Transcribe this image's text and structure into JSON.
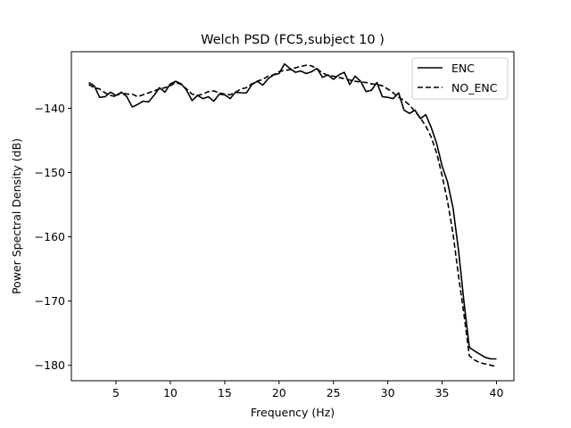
{
  "chart_data": {
    "type": "line",
    "title": "Welch PSD (FC5,subject 10 )",
    "xlabel": "Frequency (Hz)",
    "ylabel": "Power Spectral Density (dB)",
    "xlim": [
      0.9,
      41.6
    ],
    "ylim": [
      -182.4,
      -131.2
    ],
    "xticks": [
      5,
      10,
      15,
      20,
      25,
      30,
      35,
      40
    ],
    "yticks": [
      -180,
      -170,
      -160,
      -150,
      -140
    ],
    "grid": false,
    "legend_position": "top-right",
    "series": [
      {
        "name": "ENC",
        "style": "solid",
        "color": "#000000",
        "x": [
          2.5,
          3.0,
          3.5,
          4.0,
          4.5,
          5.0,
          5.5,
          6.0,
          6.5,
          7.0,
          7.5,
          8.0,
          8.5,
          9.0,
          9.5,
          10.0,
          10.5,
          11.0,
          11.5,
          12.0,
          12.5,
          13.0,
          13.5,
          14.0,
          14.5,
          15.0,
          15.5,
          16.0,
          16.5,
          17.0,
          17.5,
          18.0,
          18.5,
          19.0,
          19.5,
          20.0,
          20.5,
          21.0,
          21.5,
          22.0,
          22.5,
          23.0,
          23.5,
          24.0,
          24.5,
          25.0,
          25.5,
          26.0,
          26.5,
          27.0,
          27.5,
          28.0,
          28.5,
          29.0,
          29.5,
          30.0,
          30.5,
          31.0,
          31.5,
          32.0,
          32.5,
          33.0,
          33.5,
          34.0,
          34.5,
          35.0,
          35.5,
          36.0,
          36.5,
          37.0,
          37.5,
          38.0,
          38.5,
          39.0,
          39.5,
          40.0
        ],
        "values": [
          -136.0,
          -136.5,
          -138.3,
          -138.2,
          -137.5,
          -138.0,
          -137.5,
          -138.2,
          -139.8,
          -139.4,
          -138.9,
          -139.0,
          -138.0,
          -136.8,
          -137.5,
          -136.2,
          -135.8,
          -136.2,
          -137.2,
          -138.8,
          -138.0,
          -138.5,
          -138.2,
          -138.9,
          -137.8,
          -137.9,
          -138.5,
          -137.5,
          -137.6,
          -137.6,
          -136.3,
          -135.8,
          -136.4,
          -135.4,
          -134.8,
          -134.6,
          -133.1,
          -133.8,
          -134.4,
          -134.2,
          -134.6,
          -134.3,
          -133.8,
          -135.2,
          -134.8,
          -135.5,
          -134.8,
          -134.4,
          -136.3,
          -135.0,
          -135.8,
          -137.4,
          -137.2,
          -136.0,
          -138.2,
          -138.3,
          -138.5,
          -137.6,
          -140.3,
          -140.8,
          -140.3,
          -141.6,
          -141.0,
          -143.0,
          -145.5,
          -149.0,
          -151.5,
          -155.5,
          -162.0,
          -170.0,
          -177.2,
          -177.8,
          -178.3,
          -178.8,
          -179.0,
          -179.0
        ]
      },
      {
        "name": "NO_ENC",
        "style": "dashed",
        "color": "#000000",
        "x": [
          2.5,
          3.0,
          3.5,
          4.0,
          4.5,
          5.0,
          5.5,
          6.0,
          6.5,
          7.0,
          7.5,
          8.0,
          8.5,
          9.0,
          9.5,
          10.0,
          10.5,
          11.0,
          11.5,
          12.0,
          12.5,
          13.0,
          13.5,
          14.0,
          14.5,
          15.0,
          15.5,
          16.0,
          16.5,
          17.0,
          17.5,
          18.0,
          18.5,
          19.0,
          19.5,
          20.0,
          20.5,
          21.0,
          21.5,
          22.0,
          22.5,
          23.0,
          23.5,
          24.0,
          24.5,
          25.0,
          25.5,
          26.0,
          26.5,
          27.0,
          27.5,
          28.0,
          28.5,
          29.0,
          29.5,
          30.0,
          30.5,
          31.0,
          31.5,
          32.0,
          32.5,
          33.0,
          33.5,
          34.0,
          34.5,
          35.0,
          35.5,
          36.0,
          36.5,
          37.0,
          37.5,
          38.0,
          38.5,
          39.0,
          39.5,
          40.0
        ],
        "values": [
          -136.3,
          -136.8,
          -137.0,
          -137.6,
          -138.0,
          -138.2,
          -137.5,
          -137.8,
          -137.8,
          -138.2,
          -137.9,
          -137.6,
          -137.3,
          -137.0,
          -136.8,
          -136.5,
          -136.0,
          -136.3,
          -137.0,
          -137.8,
          -138.0,
          -137.8,
          -137.4,
          -137.3,
          -137.6,
          -137.8,
          -137.9,
          -137.5,
          -137.0,
          -136.8,
          -136.2,
          -135.8,
          -135.5,
          -135.0,
          -134.8,
          -134.3,
          -134.1,
          -134.0,
          -133.7,
          -133.5,
          -133.3,
          -133.4,
          -133.9,
          -134.5,
          -134.9,
          -135.0,
          -135.2,
          -135.4,
          -135.6,
          -135.8,
          -135.9,
          -136.0,
          -136.2,
          -136.3,
          -136.5,
          -137.0,
          -137.6,
          -138.3,
          -138.8,
          -139.5,
          -140.5,
          -141.5,
          -142.8,
          -144.5,
          -147.0,
          -150.5,
          -154.5,
          -159.5,
          -166.0,
          -172.0,
          -178.5,
          -179.2,
          -179.6,
          -179.8,
          -180.0,
          -180.2
        ]
      }
    ]
  }
}
